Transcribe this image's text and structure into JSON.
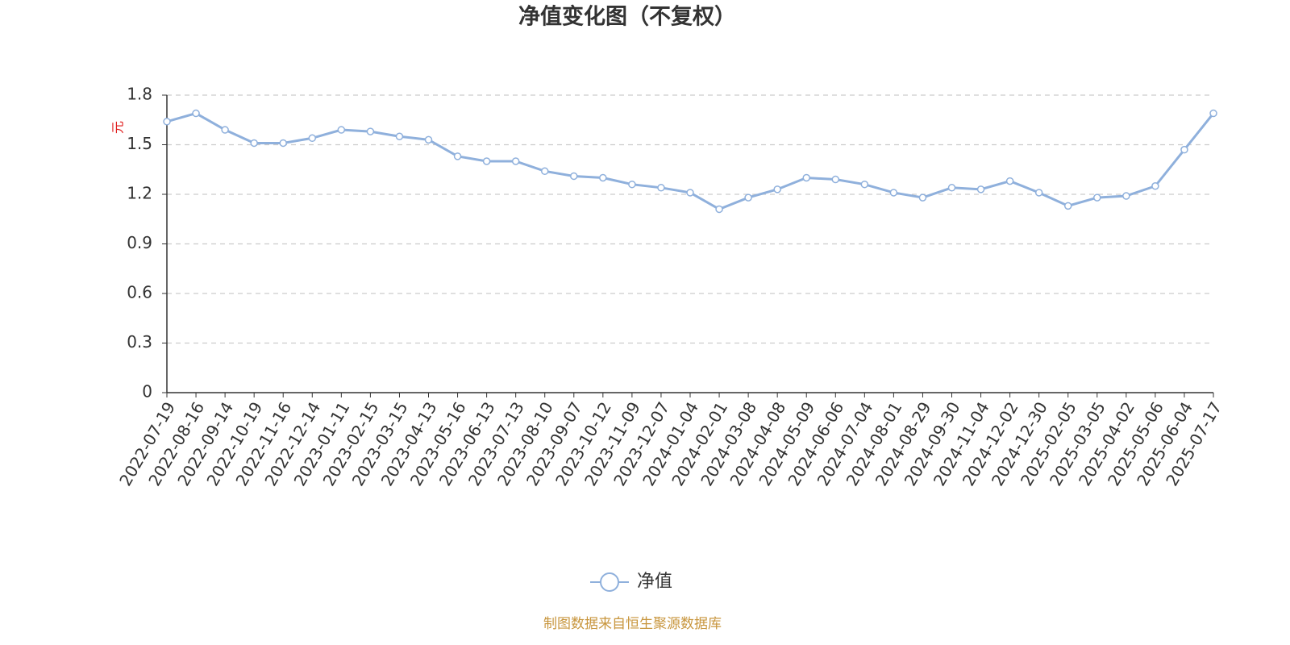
{
  "chart_data": {
    "type": "line",
    "title": "净值变化图（不复权）",
    "y_label": "元",
    "categories": [
      "2022-07-19",
      "2022-08-16",
      "2022-09-14",
      "2022-10-19",
      "2022-11-16",
      "2022-12-14",
      "2023-01-11",
      "2023-02-15",
      "2023-03-15",
      "2023-04-13",
      "2023-05-16",
      "2023-06-13",
      "2023-07-13",
      "2023-08-10",
      "2023-09-07",
      "2023-10-12",
      "2023-11-09",
      "2023-12-07",
      "2024-01-04",
      "2024-02-01",
      "2024-03-08",
      "2024-04-08",
      "2024-05-09",
      "2024-06-06",
      "2024-07-04",
      "2024-08-01",
      "2024-08-29",
      "2024-09-30",
      "2024-11-04",
      "2024-12-02",
      "2024-12-30",
      "2025-02-05",
      "2025-03-05",
      "2025-04-02",
      "2025-05-06",
      "2025-06-04",
      "2025-07-17"
    ],
    "series": [
      {
        "name": "净值",
        "color": "#8fb0dc",
        "values": [
          1.64,
          1.69,
          1.59,
          1.51,
          1.51,
          1.54,
          1.59,
          1.58,
          1.55,
          1.53,
          1.43,
          1.4,
          1.4,
          1.34,
          1.31,
          1.3,
          1.26,
          1.24,
          1.21,
          1.11,
          1.18,
          1.23,
          1.3,
          1.29,
          1.26,
          1.21,
          1.18,
          1.24,
          1.23,
          1.28,
          1.21,
          1.13,
          1.18,
          1.19,
          1.25,
          1.47,
          1.69
        ]
      }
    ],
    "ylim": [
      0,
      1.8
    ],
    "yticks": [
      0,
      0.3,
      0.6,
      0.9,
      1.2,
      1.5,
      1.8
    ],
    "grid": true,
    "source": "制图数据来自恒生聚源数据库"
  }
}
